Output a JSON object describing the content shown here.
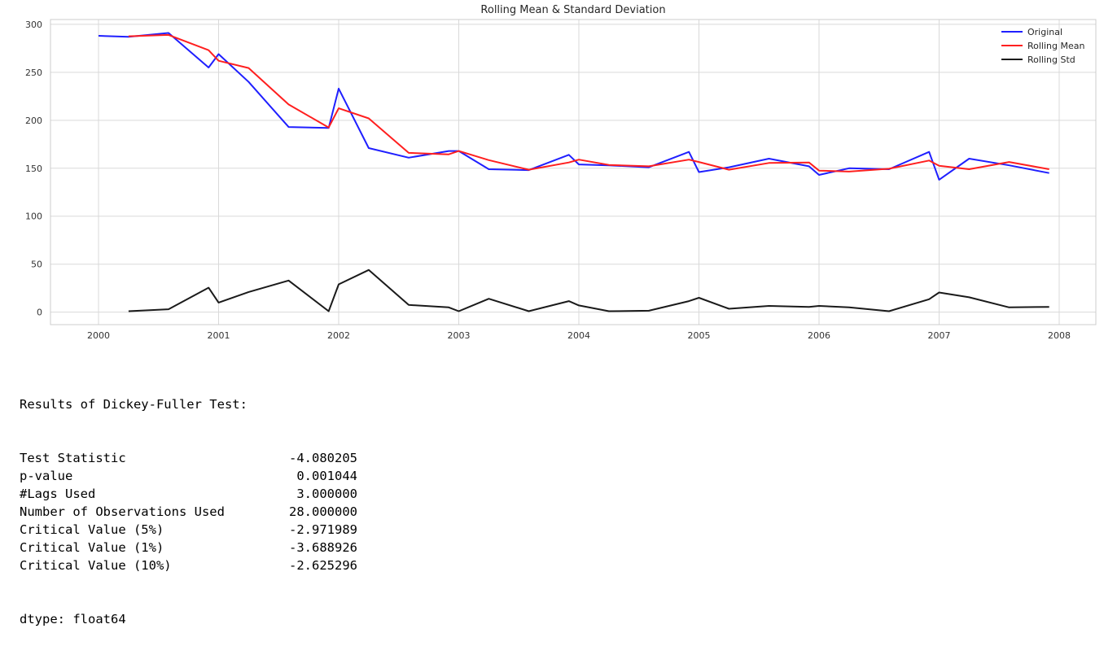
{
  "chart_data": {
    "type": "line",
    "title": "Rolling Mean & Standard Deviation",
    "xlim": [
      2000,
      2008
    ],
    "ylim": [
      -13,
      305
    ],
    "x_ticks": [
      "2000",
      "2001",
      "2002",
      "2003",
      "2004",
      "2005",
      "2006",
      "2007",
      "2008"
    ],
    "y_ticks": [
      "0",
      "50",
      "100",
      "150",
      "200",
      "250",
      "300"
    ],
    "grid": true,
    "legend_position": "top-right",
    "series": [
      {
        "name": "Original",
        "color": "#1f1fff",
        "x": [
          "2000-01",
          "2000-04",
          "2000-08",
          "2000-12",
          "2001-01",
          "2001-04",
          "2001-08",
          "2001-12",
          "2002-01",
          "2002-04",
          "2002-08",
          "2002-12",
          "2003-01",
          "2003-04",
          "2003-08",
          "2003-12",
          "2004-01",
          "2004-04",
          "2004-08",
          "2004-12",
          "2005-01",
          "2005-04",
          "2005-08",
          "2005-12",
          "2006-01",
          "2006-04",
          "2006-08",
          "2006-12",
          "2007-01",
          "2007-04",
          "2007-08",
          "2007-12"
        ],
        "values": [
          288,
          287,
          291,
          255,
          269,
          240,
          193,
          192,
          233,
          171,
          161,
          168,
          168,
          149,
          148,
          164,
          154,
          153,
          151,
          167,
          146,
          151,
          160,
          152,
          143,
          150,
          149,
          167,
          138,
          160,
          153,
          145
        ]
      },
      {
        "name": "Rolling Mean",
        "color": "#ff1f1f",
        "x": [
          "2000-04",
          "2000-08",
          "2000-12",
          "2001-01",
          "2001-04",
          "2001-08",
          "2001-12",
          "2002-01",
          "2002-04",
          "2002-08",
          "2002-12",
          "2003-01",
          "2003-04",
          "2003-08",
          "2003-12",
          "2004-01",
          "2004-04",
          "2004-08",
          "2004-12",
          "2005-01",
          "2005-04",
          "2005-08",
          "2005-12",
          "2006-01",
          "2006-04",
          "2006-08",
          "2006-12",
          "2007-01",
          "2007-04",
          "2007-08",
          "2007-12"
        ],
        "values": [
          287.5,
          289,
          273,
          262,
          254.5,
          216.5,
          192.5,
          212.5,
          202,
          166,
          164.5,
          168,
          158.5,
          148.5,
          156,
          159,
          153.5,
          152,
          159,
          156.5,
          148.5,
          155.5,
          156,
          147.5,
          146.5,
          149.5,
          158,
          152.5,
          149,
          156.5,
          149
        ]
      },
      {
        "name": "Rolling Std",
        "color": "#1a1a1a",
        "x": [
          "2000-04",
          "2000-08",
          "2000-12",
          "2001-01",
          "2001-04",
          "2001-08",
          "2001-12",
          "2002-01",
          "2002-04",
          "2002-08",
          "2002-12",
          "2003-01",
          "2003-04",
          "2003-08",
          "2003-12",
          "2004-01",
          "2004-04",
          "2004-08",
          "2004-12",
          "2005-01",
          "2005-04",
          "2005-08",
          "2005-12",
          "2006-01",
          "2006-04",
          "2006-08",
          "2006-12",
          "2007-01",
          "2007-04",
          "2007-08",
          "2007-12"
        ],
        "values": [
          1,
          3,
          25.5,
          10,
          21,
          33,
          1,
          29,
          44,
          7.5,
          5,
          1,
          14,
          1,
          11.5,
          7,
          1,
          1.5,
          11.5,
          15,
          3.5,
          6.5,
          5.5,
          6.5,
          5,
          1,
          13.5,
          20.5,
          15.5,
          5,
          5.5
        ]
      }
    ]
  },
  "output": {
    "header": "Results of Dickey-Fuller Test:",
    "rows": [
      {
        "label": "Test Statistic",
        "value": "-4.080205"
      },
      {
        "label": "p-value",
        "value": "0.001044"
      },
      {
        "label": "#Lags Used",
        "value": "3.000000"
      },
      {
        "label": "Number of Observations Used",
        "value": "28.000000"
      },
      {
        "label": "Critical Value (5%)",
        "value": "-2.971989"
      },
      {
        "label": "Critical Value (1%)",
        "value": "-3.688926"
      },
      {
        "label": "Critical Value (10%)",
        "value": "-2.625296"
      }
    ],
    "footer": "dtype: float64"
  }
}
